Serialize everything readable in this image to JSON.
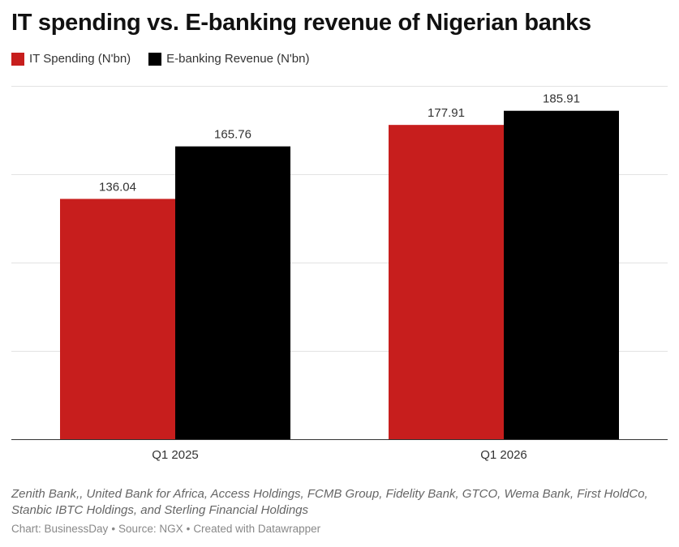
{
  "title": "IT spending vs. E-banking revenue of Nigerian banks",
  "legend": [
    {
      "label": "IT Spending (N'bn)",
      "color": "#c71e1d"
    },
    {
      "label": "E-banking Revenue (N'bn)",
      "color": "#000000"
    }
  ],
  "footnote": "Zenith Bank,, United Bank for Africa, Access Holdings, FCMB Group, Fidelity Bank, GTCO, Wema Bank, First HoldCo, Stanbic IBTC Holdings, and Sterling Financial Holdings",
  "credit": {
    "chart": "Chart: BusinessDay",
    "source": "Source: NGX",
    "created": "Created with Datawrapper"
  },
  "chart_data": {
    "type": "bar",
    "categories": [
      "Q1 2025",
      "Q1 2026"
    ],
    "series": [
      {
        "name": "IT Spending (N'bn)",
        "values": [
          136.04,
          177.91
        ],
        "color": "#c71e1d"
      },
      {
        "name": "E-banking Revenue (N'bn)",
        "values": [
          165.76,
          185.91
        ],
        "color": "#000000"
      }
    ],
    "ylim": [
      0,
      200
    ],
    "grid": true,
    "legend_position": "top-left"
  }
}
